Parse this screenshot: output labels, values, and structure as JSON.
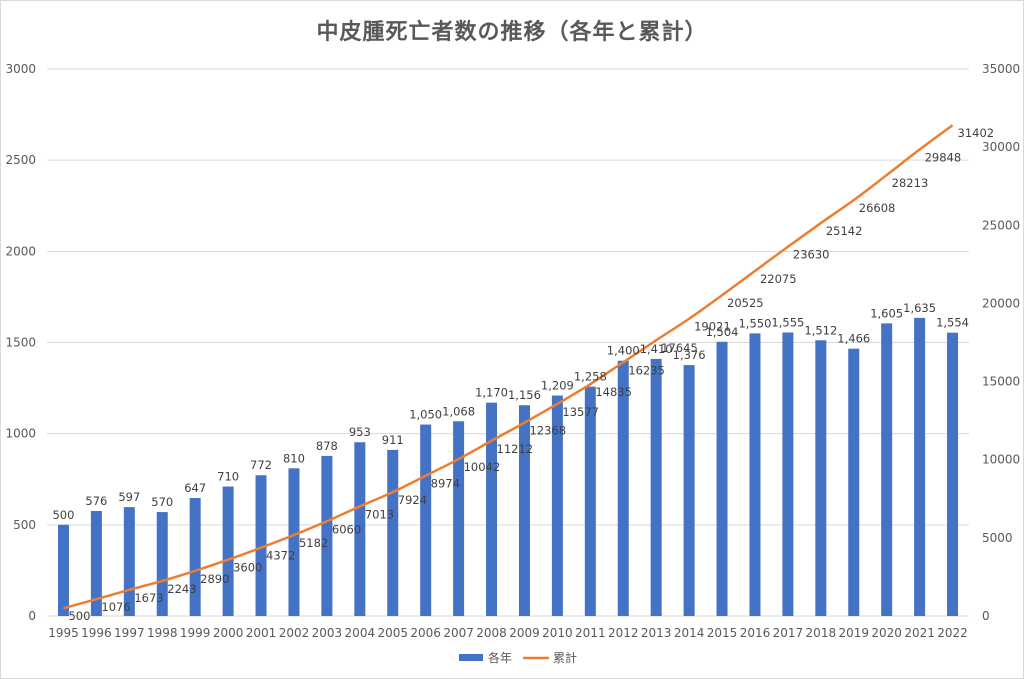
{
  "chart_data": {
    "type": "bar",
    "title": "中皮腫死亡者数の推移（各年と累計）",
    "categories": [
      "1995",
      "1996",
      "1997",
      "1998",
      "1999",
      "2000",
      "2001",
      "2002",
      "2003",
      "2004",
      "2005",
      "2006",
      "2007",
      "2008",
      "2009",
      "2010",
      "2011",
      "2012",
      "2013",
      "2014",
      "2015",
      "2016",
      "2017",
      "2018",
      "2019",
      "2020",
      "2021",
      "2022"
    ],
    "series": [
      {
        "name": "各年",
        "type": "bar",
        "axis": "left",
        "color": "#4472C4",
        "values": [
          500,
          576,
          597,
          570,
          647,
          710,
          772,
          810,
          878,
          953,
          911,
          1050,
          1068,
          1170,
          1156,
          1209,
          1258,
          1400,
          1410,
          1376,
          1504,
          1550,
          1555,
          1512,
          1466,
          1605,
          1635,
          1554
        ],
        "labels": [
          "500",
          "576",
          "597",
          "570",
          "647",
          "710",
          "772",
          "810",
          "878",
          "953",
          "911",
          "1,050",
          "1,068",
          "1,170",
          "1,156",
          "1,209",
          "1,258",
          "1,400",
          "1,410",
          "1,376",
          "1,504",
          "1,550",
          "1,555",
          "1,512",
          "1,466",
          "1,605",
          "1,635",
          "1,554"
        ]
      },
      {
        "name": "累計",
        "type": "line",
        "axis": "right",
        "color": "#ED7D31",
        "values": [
          500,
          1076,
          1673,
          2243,
          2890,
          3600,
          4372,
          5182,
          6060,
          7013,
          7924,
          8974,
          10042,
          11212,
          12368,
          13577,
          14835,
          16235,
          17645,
          19021,
          20525,
          22075,
          23630,
          25142,
          26608,
          28213,
          29848,
          31402
        ],
        "labels": [
          "500",
          "1076",
          "1673",
          "2243",
          "2890",
          "3600",
          "4372",
          "5182",
          "6060",
          "7013",
          "7924",
          "8974",
          "10042",
          "11212",
          "12368",
          "13577",
          "14835",
          "16235",
          "17645",
          "19021",
          "20525",
          "22075",
          "23630",
          "25142",
          "26608",
          "28213",
          "29848",
          "31402"
        ]
      }
    ],
    "y_left": {
      "ylim": [
        0,
        3000
      ],
      "ticks": [
        "0",
        "500",
        "1000",
        "1500",
        "2000",
        "2500",
        "3000"
      ]
    },
    "y_right": {
      "ylim": [
        0,
        35000
      ],
      "ticks": [
        "0",
        "5000",
        "10000",
        "15000",
        "20000",
        "25000",
        "30000",
        "35000"
      ]
    },
    "grid": true,
    "legend_position": "bottom"
  }
}
